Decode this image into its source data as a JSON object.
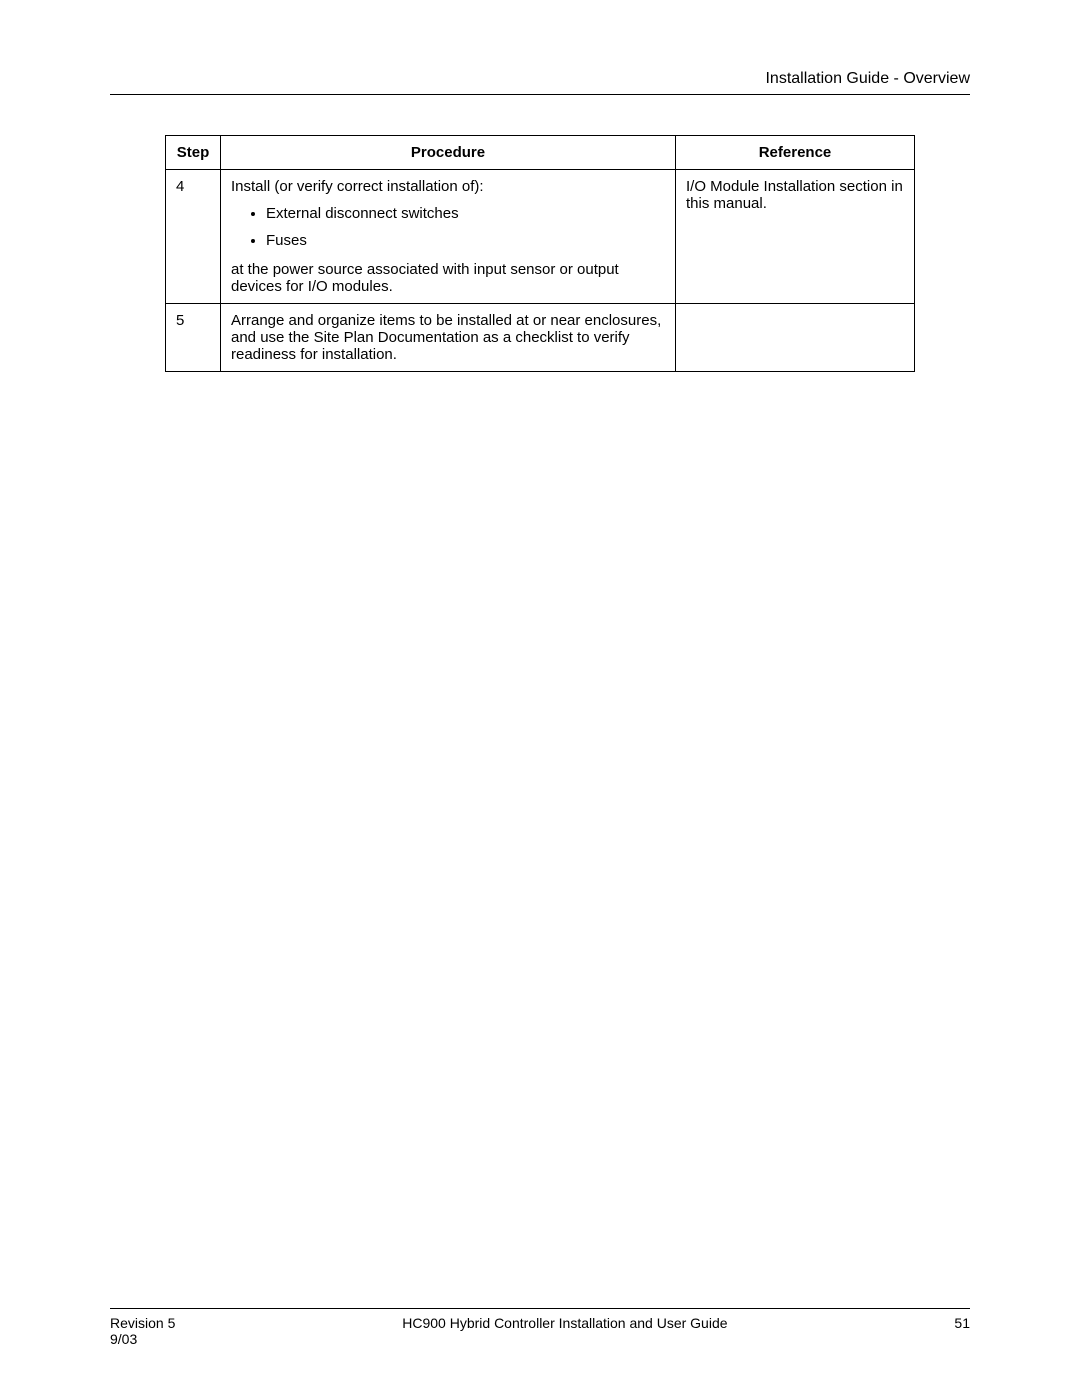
{
  "header": {
    "title": "Installation Guide - Overview"
  },
  "table": {
    "columns": {
      "step": "Step",
      "procedure": "Procedure",
      "reference": "Reference"
    },
    "rows": [
      {
        "step": "4",
        "procedure_intro": "Install (or verify correct installation of):",
        "procedure_items": [
          "External disconnect switches",
          "Fuses"
        ],
        "procedure_outro": "at the power source associated with input sensor or output devices for I/O modules.",
        "reference": "I/O Module Installation section in this manual."
      },
      {
        "step": "5",
        "procedure_text": "Arrange and organize items to be installed at or near enclosures, and use the Site Plan Documentation as a checklist to verify readiness for installation.",
        "reference": ""
      }
    ]
  },
  "footer": {
    "revision": "Revision 5",
    "date": "9/03",
    "doc_title": "HC900 Hybrid Controller Installation and User Guide",
    "page_number": "51"
  },
  "styling": {
    "font_family": "Arial",
    "body_font_size": 15,
    "header_font_size": 16,
    "footer_font_size": 14,
    "text_color": "#000000",
    "background_color": "#ffffff",
    "border_color": "#000000"
  }
}
